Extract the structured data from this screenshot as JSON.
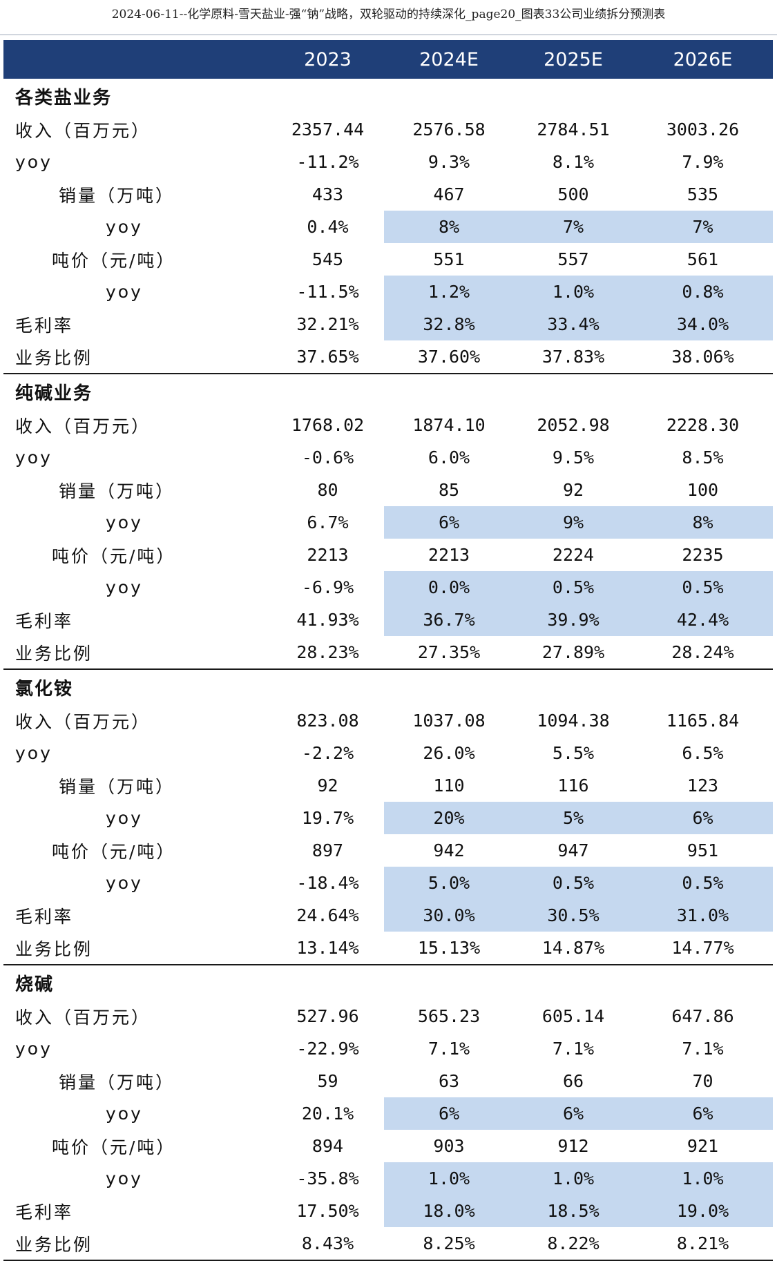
{
  "page_title": "2024-06-11--化学原料-雪天盐业-强“钠”战略，双轮驱动的持续深化_page20_图表33公司业绩拆分预测表",
  "columns": [
    "",
    "2023",
    "2024E",
    "2025E",
    "2026E"
  ],
  "colors": {
    "header_bg": "#1f3f78",
    "highlight": "#c5d8ef"
  },
  "sections": [
    {
      "name": "各类盐业务",
      "rows": [
        {
          "label": "收入（百万元）",
          "values": [
            "2357.44",
            "2576.58",
            "2784.51",
            "3003.26"
          ]
        },
        {
          "label": "yoy",
          "values": [
            "-11.2%",
            "9.3%",
            "8.1%",
            "7.9%"
          ]
        },
        {
          "label": "销量（万吨）",
          "values": [
            "433",
            "467",
            "500",
            "535"
          ]
        },
        {
          "label": "yoy",
          "values": [
            "0.4%",
            "8%",
            "7%",
            "7%"
          ]
        },
        {
          "label": "吨价（元/吨）",
          "values": [
            "545",
            "551",
            "557",
            "561"
          ]
        },
        {
          "label": "yoy",
          "values": [
            "-11.5%",
            "1.2%",
            "1.0%",
            "0.8%"
          ]
        },
        {
          "label": "毛利率",
          "values": [
            "32.21%",
            "32.8%",
            "33.4%",
            "34.0%"
          ]
        },
        {
          "label": "业务比例",
          "values": [
            "37.65%",
            "37.60%",
            "37.83%",
            "38.06%"
          ]
        }
      ]
    },
    {
      "name": "纯碱业务",
      "rows": [
        {
          "label": "收入（百万元）",
          "values": [
            "1768.02",
            "1874.10",
            "2052.98",
            "2228.30"
          ]
        },
        {
          "label": "yoy",
          "values": [
            "-0.6%",
            "6.0%",
            "9.5%",
            "8.5%"
          ]
        },
        {
          "label": "销量（万吨）",
          "values": [
            "80",
            "85",
            "92",
            "100"
          ]
        },
        {
          "label": "yoy",
          "values": [
            "6.7%",
            "6%",
            "9%",
            "8%"
          ]
        },
        {
          "label": "吨价（元/吨）",
          "values": [
            "2213",
            "2213",
            "2224",
            "2235"
          ]
        },
        {
          "label": "yoy",
          "values": [
            "-6.9%",
            "0.0%",
            "0.5%",
            "0.5%"
          ]
        },
        {
          "label": "毛利率",
          "values": [
            "41.93%",
            "36.7%",
            "39.9%",
            "42.4%"
          ]
        },
        {
          "label": "业务比例",
          "values": [
            "28.23%",
            "27.35%",
            "27.89%",
            "28.24%"
          ]
        }
      ]
    },
    {
      "name": "氯化铵",
      "rows": [
        {
          "label": "收入（百万元）",
          "values": [
            "823.08",
            "1037.08",
            "1094.38",
            "1165.84"
          ]
        },
        {
          "label": "yoy",
          "values": [
            "-2.2%",
            "26.0%",
            "5.5%",
            "6.5%"
          ]
        },
        {
          "label": "销量（万吨）",
          "values": [
            "92",
            "110",
            "116",
            "123"
          ]
        },
        {
          "label": "yoy",
          "values": [
            "19.7%",
            "20%",
            "5%",
            "6%"
          ]
        },
        {
          "label": "吨价（元/吨）",
          "values": [
            "897",
            "942",
            "947",
            "951"
          ]
        },
        {
          "label": "yoy",
          "values": [
            "-18.4%",
            "5.0%",
            "0.5%",
            "0.5%"
          ]
        },
        {
          "label": "毛利率",
          "values": [
            "24.64%",
            "30.0%",
            "30.5%",
            "31.0%"
          ]
        },
        {
          "label": "业务比例",
          "values": [
            "13.14%",
            "15.13%",
            "14.87%",
            "14.77%"
          ]
        }
      ]
    },
    {
      "name": "烧碱",
      "rows": [
        {
          "label": "收入（百万元）",
          "values": [
            "527.96",
            "565.23",
            "605.14",
            "647.86"
          ]
        },
        {
          "label": "yoy",
          "values": [
            "-22.9%",
            "7.1%",
            "7.1%",
            "7.1%"
          ]
        },
        {
          "label": "销量（万吨）",
          "values": [
            "59",
            "63",
            "66",
            "70"
          ]
        },
        {
          "label": "yoy",
          "values": [
            "20.1%",
            "6%",
            "6%",
            "6%"
          ]
        },
        {
          "label": "吨价（元/吨）",
          "values": [
            "894",
            "903",
            "912",
            "921"
          ]
        },
        {
          "label": "yoy",
          "values": [
            "-35.8%",
            "1.0%",
            "1.0%",
            "1.0%"
          ]
        },
        {
          "label": "毛利率",
          "values": [
            "17.50%",
            "18.0%",
            "18.5%",
            "19.0%"
          ]
        },
        {
          "label": "业务比例",
          "values": [
            "8.43%",
            "8.25%",
            "8.22%",
            "8.21%"
          ]
        }
      ]
    }
  ]
}
